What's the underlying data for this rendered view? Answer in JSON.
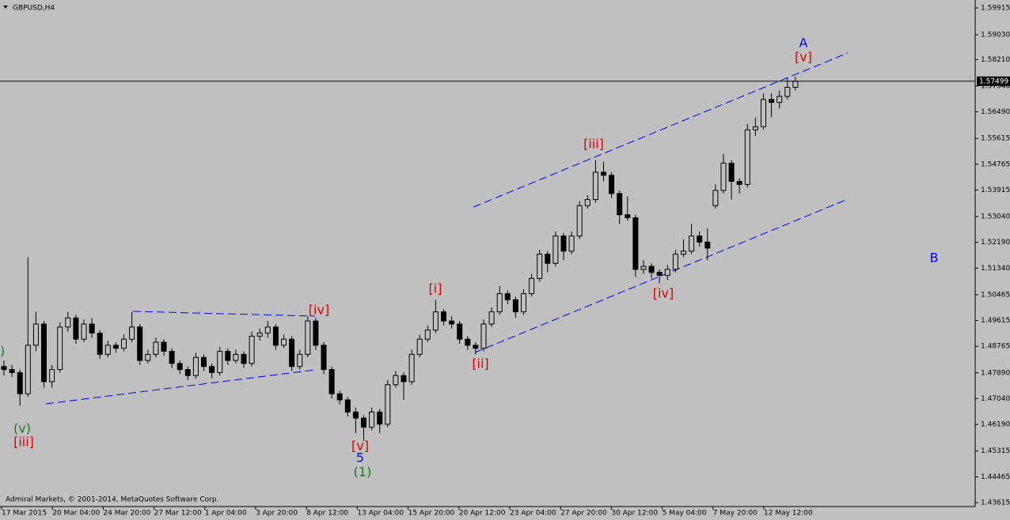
{
  "chart_data": {
    "type": "candlestick",
    "title": "GBPUSD,H4",
    "footer": "Admiral Markets, © 2001-2014, MetaQuotes Software Corp.",
    "up_color": "#c0c0c0",
    "down_color": "#000000",
    "ylim": [
      1.43615,
      1.59915
    ],
    "yticks": [
      1.59915,
      {
        "value": 1.5903,
        "label": "1.59030"
      },
      {
        "value": 1.5821,
        "label": "1.58210"
      },
      {
        "value": 1.5734,
        "label": "1.57340"
      },
      {
        "value": 1.5649,
        "label": "1.56490"
      },
      1.55615,
      1.54765,
      1.53915,
      {
        "value": 1.5304,
        "label": "1.53040"
      },
      {
        "value": 1.5219,
        "label": "1.52190"
      },
      {
        "value": 1.5134,
        "label": "1.51340"
      },
      1.50465,
      1.49615,
      1.48765,
      {
        "value": 1.4789,
        "label": "1.47890"
      },
      {
        "value": 1.4704,
        "label": "1.47040"
      },
      {
        "value": 1.4619,
        "label": "1.46190"
      },
      1.45315,
      1.44465,
      1.43615
    ],
    "current_price": 1.57499,
    "x_labels": [
      "17 Mar 2015",
      "20 Mar 04:00",
      "24 Mar 20:00",
      "27 Mar 12:00",
      "1 Apr 04:00",
      "3 Apr 20:00",
      "8 Apr 12:00",
      "13 Apr 04:00",
      "15 Apr 20:00",
      "20 Apr 12:00",
      "23 Apr 04:00",
      "27 Apr 20:00",
      "30 Apr 12:00",
      "5 May 04:00",
      "7 May 20:00",
      "12 May 12:00"
    ],
    "annotations": [
      {
        "text": ")",
        "color": "#1a7a1a"
      },
      {
        "text": "(v)",
        "color": "#1a7a1a"
      },
      {
        "text": "[iii]",
        "color": "#e00000"
      },
      {
        "text": "[iv]",
        "color": "#e00000"
      },
      {
        "text": "[v]",
        "color": "#e00000"
      },
      {
        "text": "5",
        "color": "#0000ff"
      },
      {
        "text": "(1)",
        "color": "#1a7a1a"
      },
      {
        "text": "[i]",
        "color": "#e00000"
      },
      {
        "text": "[ii]",
        "color": "#e00000"
      },
      {
        "text": "[iii]",
        "color": "#e00000"
      },
      {
        "text": "[iv]",
        "color": "#e00000"
      },
      {
        "text": "A",
        "color": "#0000ff"
      },
      {
        "text": "[v]",
        "color": "#e00000"
      },
      {
        "text": "B",
        "color": "#0000ff"
      }
    ],
    "ohlc": [
      [
        1.481,
        1.483,
        1.478,
        1.48
      ],
      [
        1.48,
        1.4815,
        1.4775,
        1.479
      ],
      [
        1.479,
        1.48,
        1.468,
        1.472
      ],
      [
        1.472,
        1.517,
        1.471,
        1.488
      ],
      [
        1.488,
        1.499,
        1.486,
        1.495
      ],
      [
        1.495,
        1.496,
        1.474,
        1.476
      ],
      [
        1.476,
        1.4815,
        1.474,
        1.48
      ],
      [
        1.48,
        1.4955,
        1.479,
        1.494
      ],
      [
        1.494,
        1.499,
        1.4925,
        1.497
      ],
      [
        1.497,
        1.498,
        1.4885,
        1.49
      ],
      [
        1.49,
        1.4965,
        1.489,
        1.495
      ],
      [
        1.495,
        1.497,
        1.4905,
        1.492
      ],
      [
        1.492,
        1.493,
        1.4835,
        1.485
      ],
      [
        1.485,
        1.4895,
        1.484,
        1.488
      ],
      [
        1.488,
        1.489,
        1.4855,
        1.487
      ],
      [
        1.487,
        1.4915,
        1.486,
        1.49
      ],
      [
        1.49,
        1.499,
        1.489,
        1.494
      ],
      [
        1.494,
        1.495,
        1.4815,
        1.483
      ],
      [
        1.483,
        1.4865,
        1.482,
        1.485
      ],
      [
        1.485,
        1.4905,
        1.484,
        1.489
      ],
      [
        1.489,
        1.49,
        1.4845,
        1.486
      ],
      [
        1.486,
        1.487,
        1.4805,
        1.482
      ],
      [
        1.482,
        1.483,
        1.4785,
        1.48
      ],
      [
        1.48,
        1.481,
        1.4765,
        1.478
      ],
      [
        1.478,
        1.4855,
        1.477,
        1.484
      ],
      [
        1.484,
        1.485,
        1.4795,
        1.481
      ],
      [
        1.481,
        1.482,
        1.477,
        1.479
      ],
      [
        1.479,
        1.4875,
        1.478,
        1.486
      ],
      [
        1.486,
        1.487,
        1.4815,
        1.483
      ],
      [
        1.483,
        1.4865,
        1.482,
        1.485
      ],
      [
        1.485,
        1.486,
        1.4805,
        1.482
      ],
      [
        1.482,
        1.4925,
        1.481,
        1.491
      ],
      [
        1.491,
        1.4935,
        1.4895,
        1.492
      ],
      [
        1.492,
        1.496,
        1.4905,
        1.494
      ],
      [
        1.494,
        1.495,
        1.4865,
        1.488
      ],
      [
        1.488,
        1.4915,
        1.487,
        1.49
      ],
      [
        1.49,
        1.491,
        1.4795,
        1.481
      ],
      [
        1.481,
        1.4865,
        1.48,
        1.485
      ],
      [
        1.485,
        1.4975,
        1.484,
        1.496
      ],
      [
        1.496,
        1.497,
        1.4865,
        1.488
      ],
      [
        1.488,
        1.489,
        1.4785,
        1.48
      ],
      [
        1.48,
        1.481,
        1.4705,
        1.472
      ],
      [
        1.472,
        1.473,
        1.4685,
        1.47
      ],
      [
        1.47,
        1.471,
        1.4645,
        1.466
      ],
      [
        1.466,
        1.4675,
        1.459,
        1.464
      ],
      [
        1.464,
        1.465,
        1.4565,
        1.461
      ],
      [
        1.461,
        1.4675,
        1.46,
        1.466
      ],
      [
        1.466,
        1.467,
        1.459,
        1.462
      ],
      [
        1.462,
        1.4765,
        1.461,
        1.475
      ],
      [
        1.475,
        1.4795,
        1.474,
        1.478
      ],
      [
        1.478,
        1.479,
        1.47,
        1.476
      ],
      [
        1.476,
        1.4865,
        1.475,
        1.485
      ],
      [
        1.485,
        1.4915,
        1.484,
        1.49
      ],
      [
        1.49,
        1.4945,
        1.489,
        1.493
      ],
      [
        1.493,
        1.503,
        1.492,
        1.499
      ],
      [
        1.499,
        1.5,
        1.4945,
        1.496
      ],
      [
        1.496,
        1.4975,
        1.4935,
        1.495
      ],
      [
        1.495,
        1.496,
        1.4885,
        1.49
      ],
      [
        1.49,
        1.491,
        1.4865,
        1.488
      ],
      [
        1.488,
        1.489,
        1.485,
        1.487
      ],
      [
        1.487,
        1.4965,
        1.486,
        1.495
      ],
      [
        1.495,
        1.5005,
        1.494,
        1.499
      ],
      [
        1.499,
        1.5075,
        1.498,
        1.505
      ],
      [
        1.505,
        1.506,
        1.5015,
        1.503
      ],
      [
        1.503,
        1.504,
        1.497,
        1.499
      ],
      [
        1.499,
        1.5065,
        1.498,
        1.505
      ],
      [
        1.505,
        1.5115,
        1.504,
        1.51
      ],
      [
        1.51,
        1.5195,
        1.509,
        1.518
      ],
      [
        1.518,
        1.519,
        1.512,
        1.515
      ],
      [
        1.515,
        1.5255,
        1.514,
        1.524
      ],
      [
        1.524,
        1.525,
        1.516,
        1.519
      ],
      [
        1.519,
        1.5255,
        1.518,
        1.524
      ],
      [
        1.524,
        1.5355,
        1.523,
        1.534
      ],
      [
        1.534,
        1.5375,
        1.533,
        1.536
      ],
      [
        1.536,
        1.549,
        1.535,
        1.545
      ],
      [
        1.545,
        1.5485,
        1.542,
        1.544
      ],
      [
        1.544,
        1.545,
        1.5365,
        1.538
      ],
      [
        1.538,
        1.539,
        1.528,
        1.531
      ],
      [
        1.531,
        1.537,
        1.529,
        1.53
      ],
      [
        1.53,
        1.531,
        1.5105,
        1.513
      ],
      [
        1.513,
        1.516,
        1.5115,
        1.514
      ],
      [
        1.514,
        1.515,
        1.51,
        1.512
      ],
      [
        1.512,
        1.513,
        1.5085,
        1.511
      ],
      [
        1.511,
        1.5145,
        1.5095,
        1.513
      ],
      [
        1.513,
        1.5195,
        1.512,
        1.518
      ],
      [
        1.518,
        1.523,
        1.517,
        1.519
      ],
      [
        1.519,
        1.528,
        1.518,
        1.524
      ],
      [
        1.524,
        1.5255,
        1.5205,
        1.522
      ],
      [
        1.522,
        1.5265,
        1.516,
        1.52
      ],
      [
        1.534,
        1.541,
        1.533,
        1.539
      ],
      [
        1.539,
        1.551,
        1.538,
        1.548
      ],
      [
        1.548,
        1.549,
        1.536,
        1.542
      ],
      [
        1.542,
        1.543,
        1.538,
        1.541
      ],
      [
        1.541,
        1.561,
        1.54,
        1.559
      ],
      [
        1.559,
        1.563,
        1.557,
        1.56
      ],
      [
        1.56,
        1.571,
        1.559,
        1.569
      ],
      [
        1.569,
        1.571,
        1.563,
        1.568
      ],
      [
        1.568,
        1.572,
        1.566,
        1.57
      ],
      [
        1.57,
        1.576,
        1.569,
        1.573
      ],
      [
        1.573,
        1.5765,
        1.572,
        1.575
      ]
    ]
  }
}
